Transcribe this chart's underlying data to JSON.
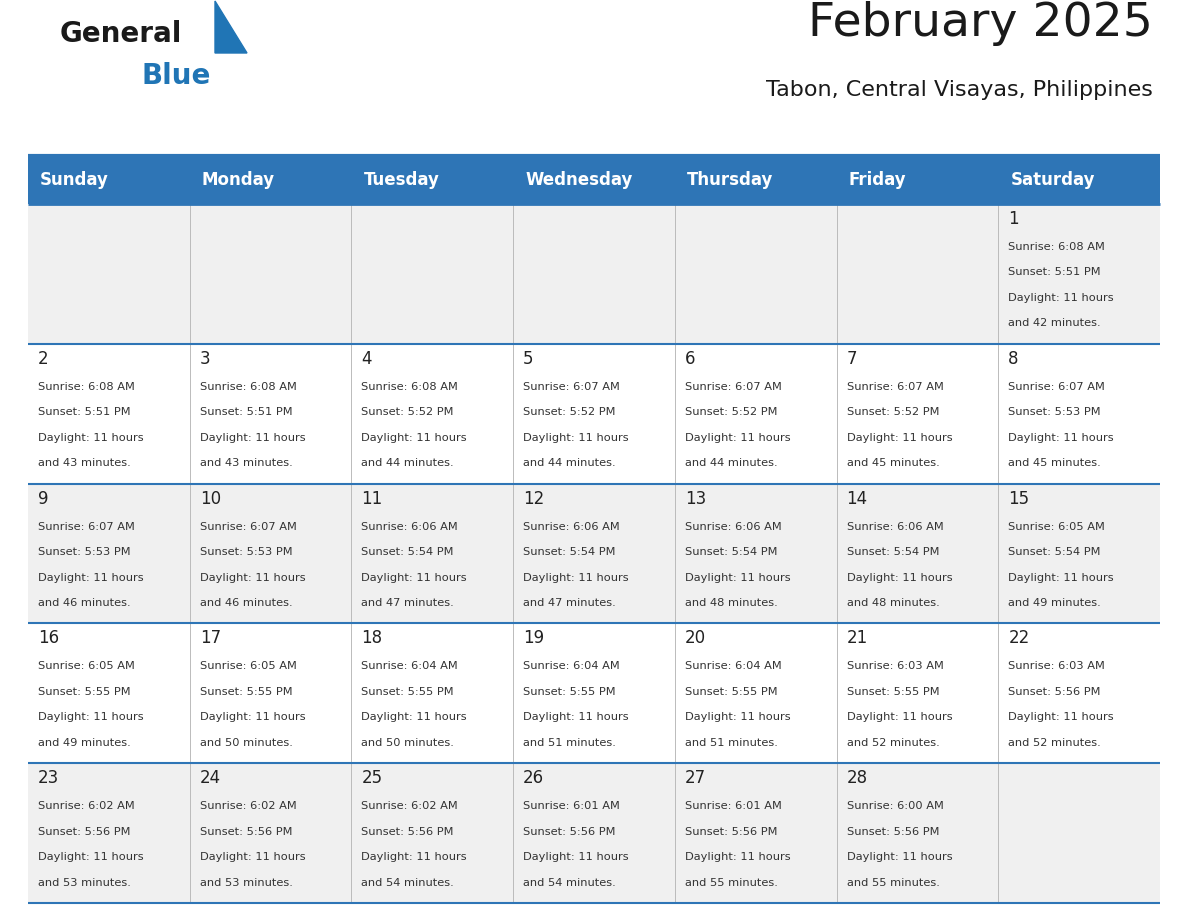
{
  "title": "February 2025",
  "subtitle": "Tabon, Central Visayas, Philippines",
  "header_bg": "#2E75B6",
  "header_text_color": "#FFFFFF",
  "cell_bg_odd": "#F0F0F0",
  "cell_bg_even": "#FFFFFF",
  "day_number_color": "#222222",
  "text_color": "#333333",
  "line_color": "#2E75B6",
  "days_of_week": [
    "Sunday",
    "Monday",
    "Tuesday",
    "Wednesday",
    "Thursday",
    "Friday",
    "Saturday"
  ],
  "weeks": [
    [
      {
        "day": null,
        "sunrise": null,
        "sunset": null,
        "daylight_hrs": null,
        "daylight_min": null
      },
      {
        "day": null,
        "sunrise": null,
        "sunset": null,
        "daylight_hrs": null,
        "daylight_min": null
      },
      {
        "day": null,
        "sunrise": null,
        "sunset": null,
        "daylight_hrs": null,
        "daylight_min": null
      },
      {
        "day": null,
        "sunrise": null,
        "sunset": null,
        "daylight_hrs": null,
        "daylight_min": null
      },
      {
        "day": null,
        "sunrise": null,
        "sunset": null,
        "daylight_hrs": null,
        "daylight_min": null
      },
      {
        "day": null,
        "sunrise": null,
        "sunset": null,
        "daylight_hrs": null,
        "daylight_min": null
      },
      {
        "day": 1,
        "sunrise": "6:08 AM",
        "sunset": "5:51 PM",
        "daylight_hrs": "11 hours",
        "daylight_min": "and 42 minutes."
      }
    ],
    [
      {
        "day": 2,
        "sunrise": "6:08 AM",
        "sunset": "5:51 PM",
        "daylight_hrs": "11 hours",
        "daylight_min": "and 43 minutes."
      },
      {
        "day": 3,
        "sunrise": "6:08 AM",
        "sunset": "5:51 PM",
        "daylight_hrs": "11 hours",
        "daylight_min": "and 43 minutes."
      },
      {
        "day": 4,
        "sunrise": "6:08 AM",
        "sunset": "5:52 PM",
        "daylight_hrs": "11 hours",
        "daylight_min": "and 44 minutes."
      },
      {
        "day": 5,
        "sunrise": "6:07 AM",
        "sunset": "5:52 PM",
        "daylight_hrs": "11 hours",
        "daylight_min": "and 44 minutes."
      },
      {
        "day": 6,
        "sunrise": "6:07 AM",
        "sunset": "5:52 PM",
        "daylight_hrs": "11 hours",
        "daylight_min": "and 44 minutes."
      },
      {
        "day": 7,
        "sunrise": "6:07 AM",
        "sunset": "5:52 PM",
        "daylight_hrs": "11 hours",
        "daylight_min": "and 45 minutes."
      },
      {
        "day": 8,
        "sunrise": "6:07 AM",
        "sunset": "5:53 PM",
        "daylight_hrs": "11 hours",
        "daylight_min": "and 45 minutes."
      }
    ],
    [
      {
        "day": 9,
        "sunrise": "6:07 AM",
        "sunset": "5:53 PM",
        "daylight_hrs": "11 hours",
        "daylight_min": "and 46 minutes."
      },
      {
        "day": 10,
        "sunrise": "6:07 AM",
        "sunset": "5:53 PM",
        "daylight_hrs": "11 hours",
        "daylight_min": "and 46 minutes."
      },
      {
        "day": 11,
        "sunrise": "6:06 AM",
        "sunset": "5:54 PM",
        "daylight_hrs": "11 hours",
        "daylight_min": "and 47 minutes."
      },
      {
        "day": 12,
        "sunrise": "6:06 AM",
        "sunset": "5:54 PM",
        "daylight_hrs": "11 hours",
        "daylight_min": "and 47 minutes."
      },
      {
        "day": 13,
        "sunrise": "6:06 AM",
        "sunset": "5:54 PM",
        "daylight_hrs": "11 hours",
        "daylight_min": "and 48 minutes."
      },
      {
        "day": 14,
        "sunrise": "6:06 AM",
        "sunset": "5:54 PM",
        "daylight_hrs": "11 hours",
        "daylight_min": "and 48 minutes."
      },
      {
        "day": 15,
        "sunrise": "6:05 AM",
        "sunset": "5:54 PM",
        "daylight_hrs": "11 hours",
        "daylight_min": "and 49 minutes."
      }
    ],
    [
      {
        "day": 16,
        "sunrise": "6:05 AM",
        "sunset": "5:55 PM",
        "daylight_hrs": "11 hours",
        "daylight_min": "and 49 minutes."
      },
      {
        "day": 17,
        "sunrise": "6:05 AM",
        "sunset": "5:55 PM",
        "daylight_hrs": "11 hours",
        "daylight_min": "and 50 minutes."
      },
      {
        "day": 18,
        "sunrise": "6:04 AM",
        "sunset": "5:55 PM",
        "daylight_hrs": "11 hours",
        "daylight_min": "and 50 minutes."
      },
      {
        "day": 19,
        "sunrise": "6:04 AM",
        "sunset": "5:55 PM",
        "daylight_hrs": "11 hours",
        "daylight_min": "and 51 minutes."
      },
      {
        "day": 20,
        "sunrise": "6:04 AM",
        "sunset": "5:55 PM",
        "daylight_hrs": "11 hours",
        "daylight_min": "and 51 minutes."
      },
      {
        "day": 21,
        "sunrise": "6:03 AM",
        "sunset": "5:55 PM",
        "daylight_hrs": "11 hours",
        "daylight_min": "and 52 minutes."
      },
      {
        "day": 22,
        "sunrise": "6:03 AM",
        "sunset": "5:56 PM",
        "daylight_hrs": "11 hours",
        "daylight_min": "and 52 minutes."
      }
    ],
    [
      {
        "day": 23,
        "sunrise": "6:02 AM",
        "sunset": "5:56 PM",
        "daylight_hrs": "11 hours",
        "daylight_min": "and 53 minutes."
      },
      {
        "day": 24,
        "sunrise": "6:02 AM",
        "sunset": "5:56 PM",
        "daylight_hrs": "11 hours",
        "daylight_min": "and 53 minutes."
      },
      {
        "day": 25,
        "sunrise": "6:02 AM",
        "sunset": "5:56 PM",
        "daylight_hrs": "11 hours",
        "daylight_min": "and 54 minutes."
      },
      {
        "day": 26,
        "sunrise": "6:01 AM",
        "sunset": "5:56 PM",
        "daylight_hrs": "11 hours",
        "daylight_min": "and 54 minutes."
      },
      {
        "day": 27,
        "sunrise": "6:01 AM",
        "sunset": "5:56 PM",
        "daylight_hrs": "11 hours",
        "daylight_min": "and 55 minutes."
      },
      {
        "day": 28,
        "sunrise": "6:00 AM",
        "sunset": "5:56 PM",
        "daylight_hrs": "11 hours",
        "daylight_min": "and 55 minutes."
      },
      {
        "day": null,
        "sunrise": null,
        "sunset": null,
        "daylight_hrs": null,
        "daylight_min": null
      }
    ]
  ],
  "logo_general_color": "#1a1a1a",
  "logo_blue_color": "#2075B5",
  "title_fontsize": 34,
  "subtitle_fontsize": 16,
  "header_fontsize": 12,
  "day_num_fontsize": 12,
  "cell_text_fontsize": 8.2
}
